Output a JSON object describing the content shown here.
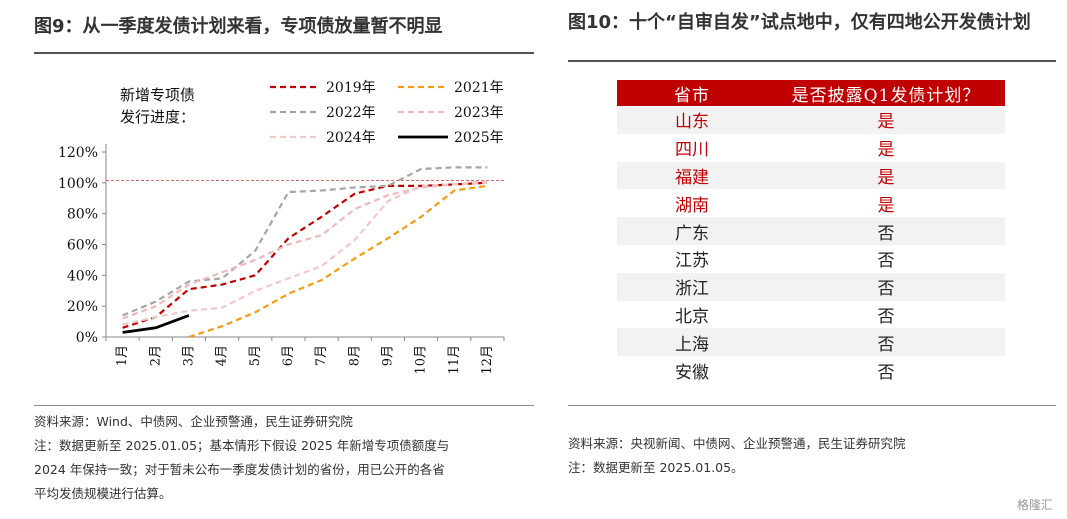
{
  "left_title": "图9：从一季度发债计划来看，专项债放量暂不明显",
  "right_title": "图10：十个“自审自发”试点地中，仅有四地公开发债计划",
  "left_notes": [
    "资料来源：Wind、中债网、企业预警通，民生证券研究院",
    "注：数据更新至 2025.01.05；基本情形下假设 2025 年新增专项债额度与",
    "2024 年保持一致；对于暂未公布一季度发债计划的省份，用已公开的各省",
    "平均发债规模进行估算。"
  ],
  "right_notes": [
    "资料来源：央视新闻、中债网、企业预警通，民生证券研究院",
    "注：数据更新至 2025.01.05。"
  ],
  "watermark": "格隆汇",
  "chart_data": {
    "type": "line",
    "title_lines": [
      "新增专项债",
      "发行进度："
    ],
    "categories": [
      "1月",
      "2月",
      "3月",
      "4月",
      "5月",
      "6月",
      "7月",
      "8月",
      "9月",
      "10月",
      "11月",
      "12月"
    ],
    "y_ticks": [
      "0%",
      "20%",
      "40%",
      "60%",
      "80%",
      "100%",
      "120%"
    ],
    "ylim": [
      0,
      120
    ],
    "reference_line": 101.5,
    "legend_position": "top-right",
    "series": [
      {
        "name": "2019年",
        "color": "#c00000",
        "dash": "dashed",
        "values": [
          6,
          13,
          31,
          34,
          40,
          64,
          78,
          93,
          98,
          98,
          99,
          100
        ]
      },
      {
        "name": "2021年",
        "color": "#f39c12",
        "dash": "dashed",
        "values": [
          null,
          null,
          0,
          7,
          16,
          28,
          37,
          51,
          64,
          78,
          95,
          98
        ]
      },
      {
        "name": "2022年",
        "color": "#a6a6a6",
        "dash": "dashed",
        "values": [
          14,
          23,
          36,
          38,
          56,
          94,
          95,
          97,
          98,
          109,
          110,
          110
        ]
      },
      {
        "name": "2023年",
        "color": "#f0b8b8",
        "dash": "dashed",
        "values": [
          12,
          20,
          34,
          42,
          50,
          60,
          66,
          83,
          92,
          97,
          99,
          101
        ]
      },
      {
        "name": "2024年",
        "color": "#f0c8c8",
        "dash": "dashed",
        "values": [
          8,
          13,
          17,
          19,
          30,
          38,
          46,
          63,
          88,
          98,
          99,
          100
        ]
      },
      {
        "name": "2025年",
        "color": "#000000",
        "dash": "solid",
        "values": [
          3,
          6,
          14,
          null,
          null,
          null,
          null,
          null,
          null,
          null,
          null,
          null
        ]
      }
    ]
  },
  "table": {
    "headers": [
      "省市",
      "是否披露Q1发债计划？"
    ],
    "rows": [
      {
        "region": "山东",
        "answer": "是",
        "highlight": true
      },
      {
        "region": "四川",
        "answer": "是",
        "highlight": true
      },
      {
        "region": "福建",
        "answer": "是",
        "highlight": true
      },
      {
        "region": "湖南",
        "answer": "是",
        "highlight": true
      },
      {
        "region": "广东",
        "answer": "否",
        "highlight": false
      },
      {
        "region": "江苏",
        "answer": "否",
        "highlight": false
      },
      {
        "region": "浙江",
        "answer": "否",
        "highlight": false
      },
      {
        "region": "北京",
        "answer": "否",
        "highlight": false
      },
      {
        "region": "上海",
        "answer": "否",
        "highlight": false
      },
      {
        "region": "安徽",
        "answer": "否",
        "highlight": false
      }
    ]
  }
}
